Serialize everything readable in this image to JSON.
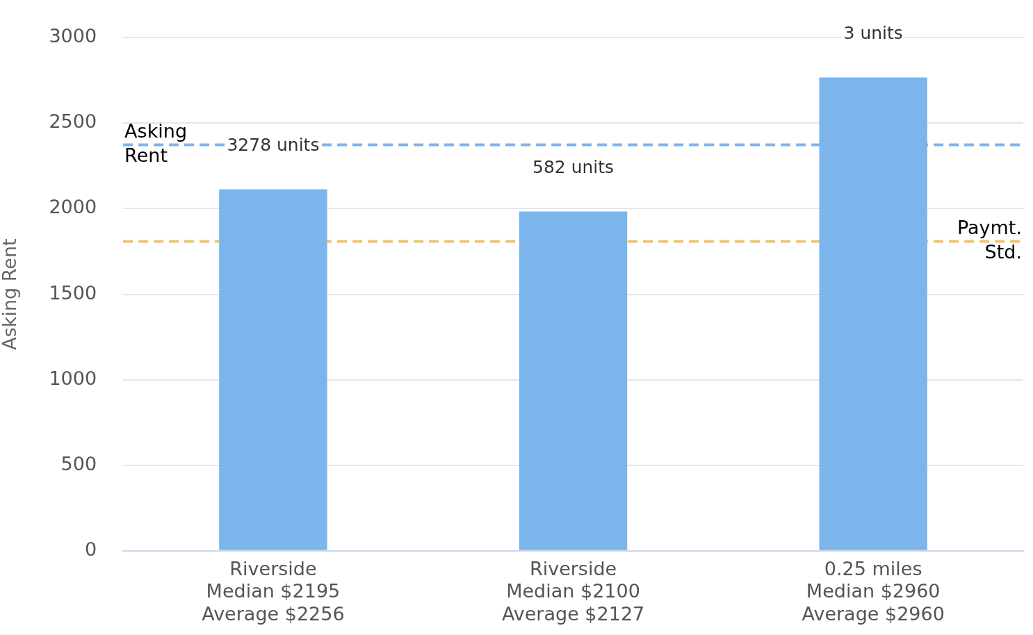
{
  "chart_data": {
    "type": "bar",
    "ylabel": "Asking Rent",
    "categories": [
      "Riverside\nMedian $2195\nAverage $2256",
      "Riverside\nMedian $2100\nAverage $2127",
      "0.25 miles\nMedian $2960\nAverage $2960"
    ],
    "values": [
      2113,
      1983,
      2767
    ],
    "color": "#7cb5ec",
    "annotations": [
      "3278 units",
      "582 units",
      "3 units"
    ],
    "ylim": [
      0,
      3000
    ],
    "yticks": [
      0,
      500,
      1000,
      1500,
      2000,
      2500,
      3000
    ],
    "grid": "y",
    "legend": false,
    "ref_lines": [
      {
        "axis": "y",
        "value": 2373,
        "label": "Asking Rent",
        "color": "#7cb5ec",
        "line_style": "dashed"
      },
      {
        "axis": "y",
        "value": 1809,
        "label": "Paymt. Std.",
        "color": "#f0c36b",
        "line_style": "dashed"
      }
    ]
  }
}
